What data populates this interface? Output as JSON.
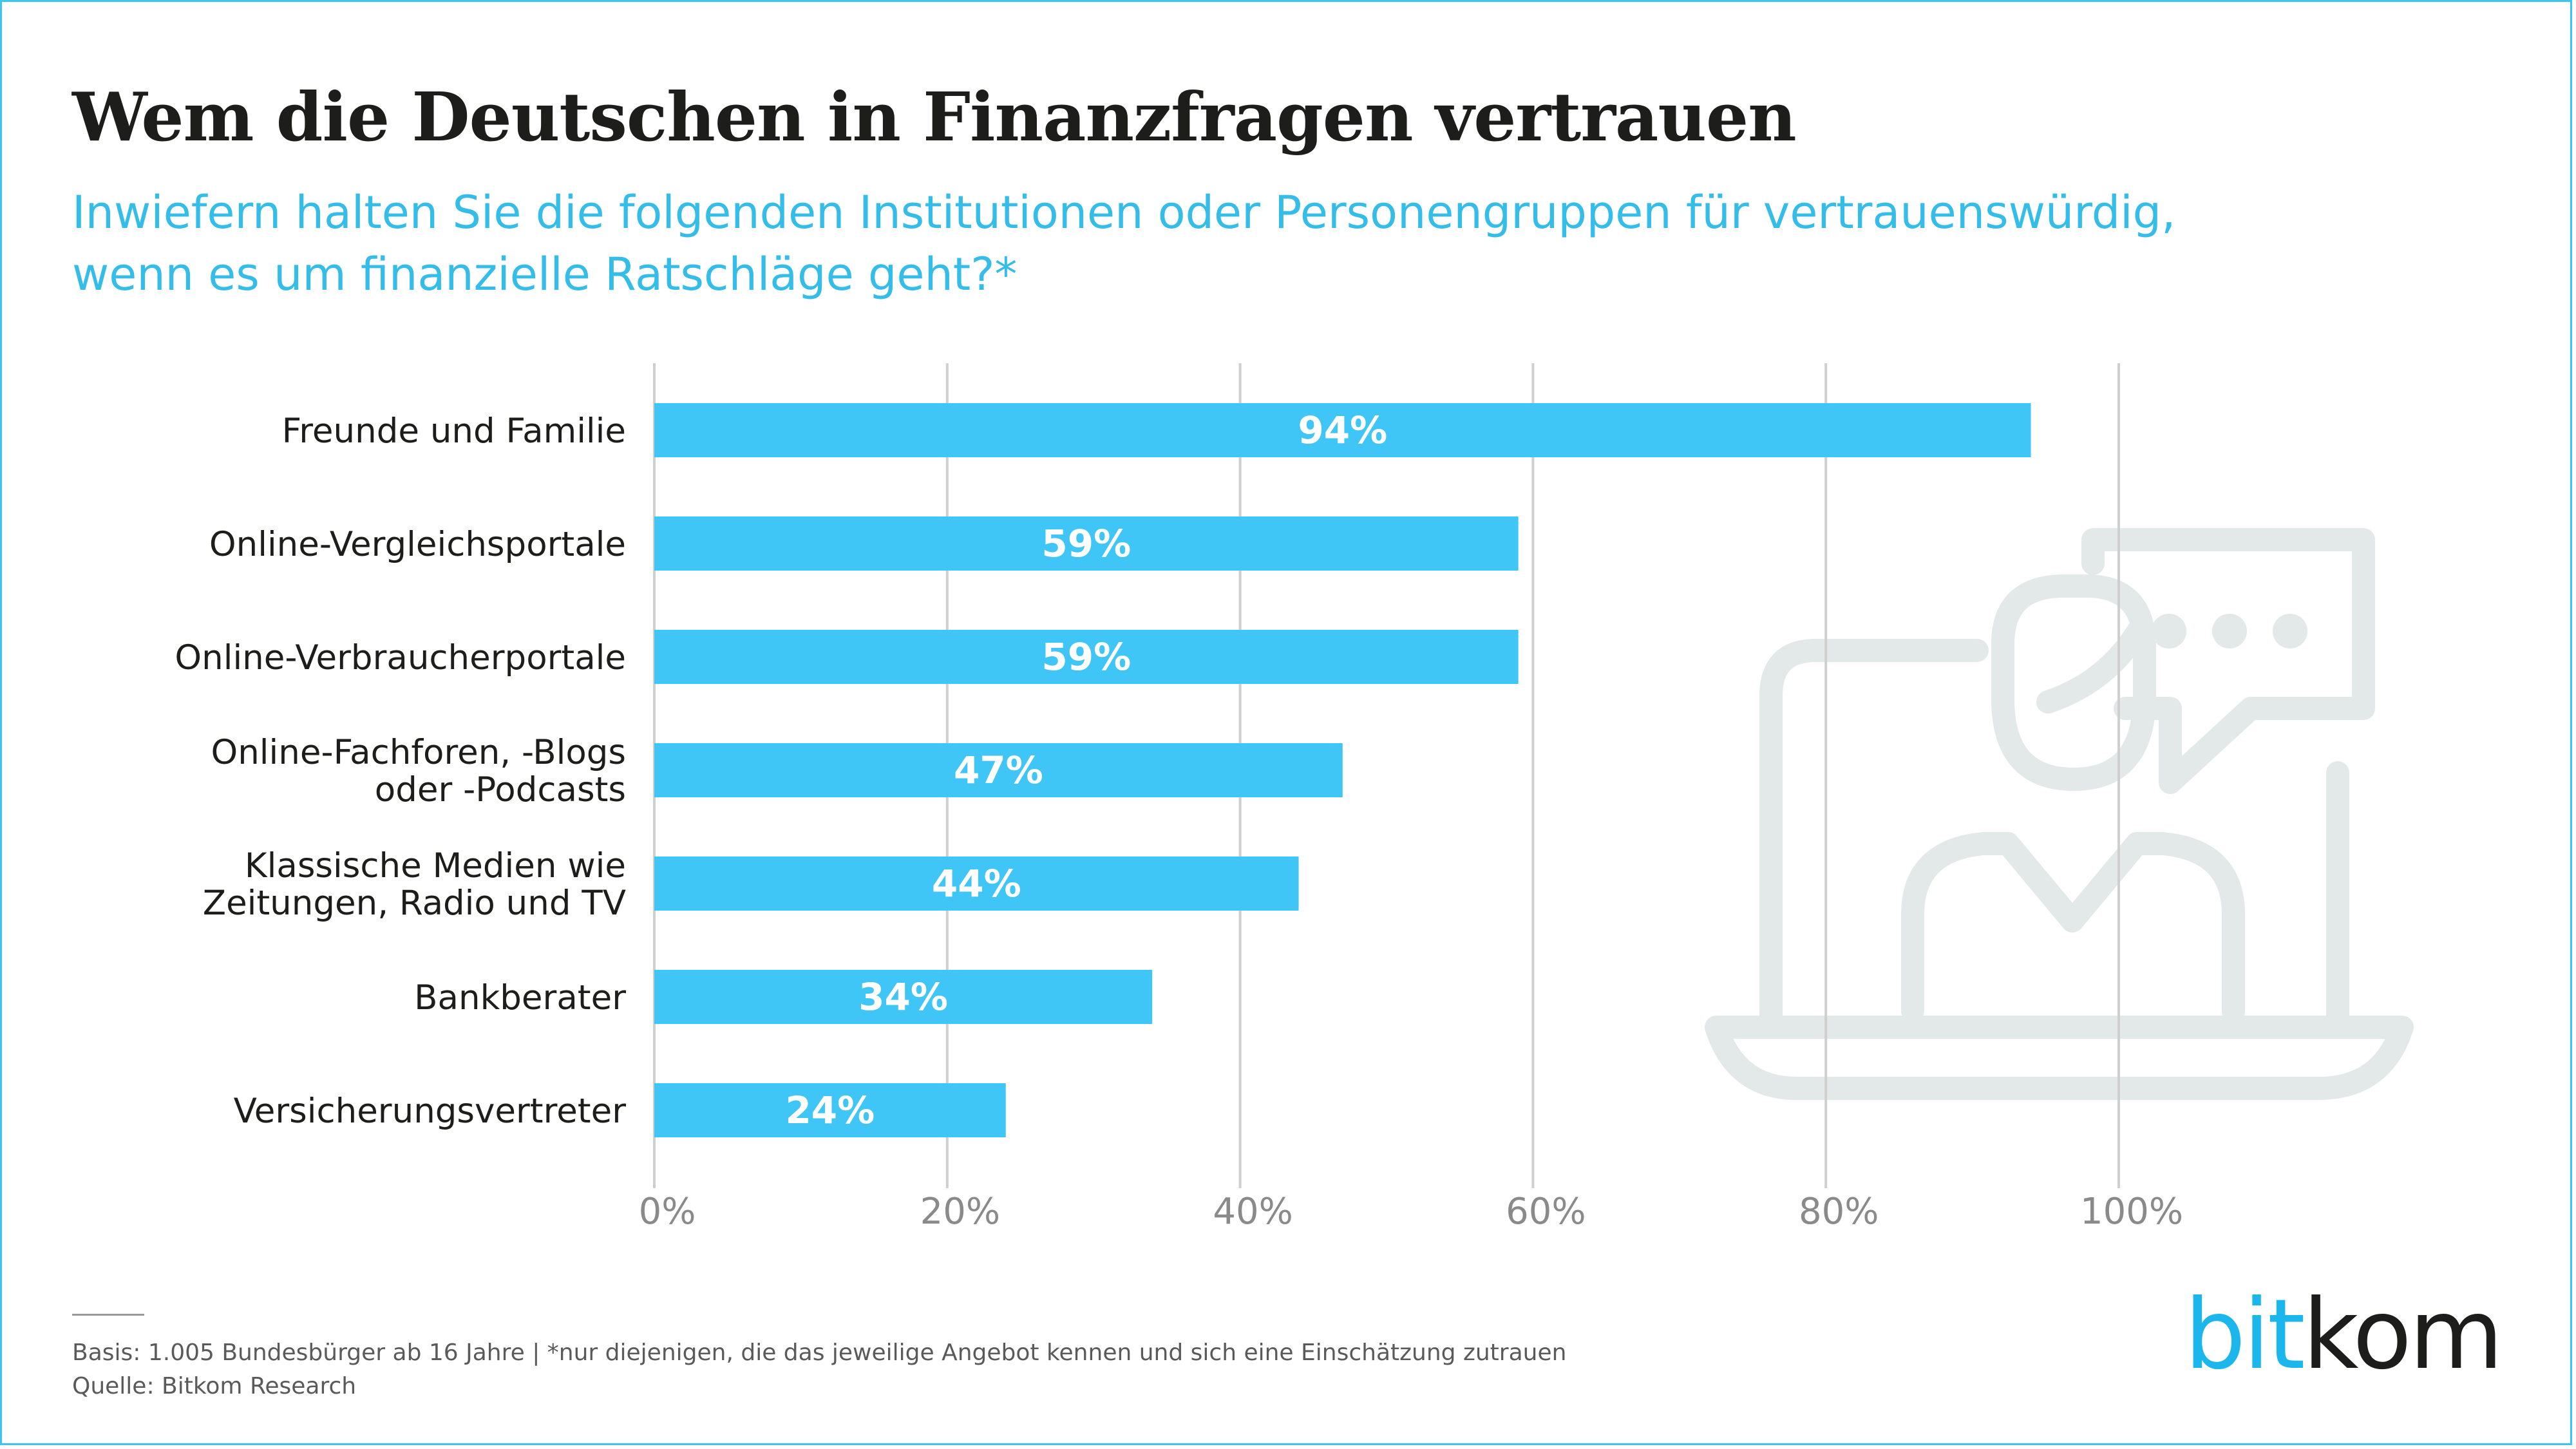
{
  "title": "Wem die Deutschen in Finanzfragen vertrauen",
  "subtitle": "Inwiefern halten Sie die folgenden Institutionen oder Personengruppen für vertrauenswürdig, wenn es um finanzielle Ratschläge geht?*",
  "chart_data": {
    "type": "bar",
    "orientation": "horizontal",
    "categories": [
      [
        "Freunde und Familie"
      ],
      [
        "Online-Vergleichsportale"
      ],
      [
        "Online-Verbraucherportale"
      ],
      [
        "Online-Fachforen, -Blogs",
        "oder -Podcasts"
      ],
      [
        "Klassische Medien wie",
        "Zeitungen, Radio und TV"
      ],
      [
        "Bankberater"
      ],
      [
        "Versicherungsvertreter"
      ]
    ],
    "values": [
      94,
      59,
      59,
      47,
      44,
      34,
      24
    ],
    "data_labels": [
      "94%",
      "59%",
      "59%",
      "47%",
      "44%",
      "34%",
      "24%"
    ],
    "xticks": [
      0,
      20,
      40,
      60,
      80,
      100
    ],
    "xtick_labels": [
      "0%",
      "20%",
      "40%",
      "60%",
      "80%",
      "100%"
    ],
    "xlim": [
      0,
      100
    ],
    "grid": "vertical",
    "bar_color": "#40c6f6",
    "label_color": "#1d1d1b",
    "tick_color": "#8a8a8a"
  },
  "footnote": {
    "basis": "Basis: 1.005 Bundesbürger ab 16 Jahre | *nur diejenigen, die das jeweilige Angebot kennen und sich eine Einschätzung zutrauen",
    "source": "Quelle: Bitkom Research"
  },
  "logo": {
    "part_a": "bit",
    "part_b": "kom"
  },
  "illustration": {
    "icon": "person-at-laptop-with-speech-bubble-icon",
    "color": "#e3e9e8"
  }
}
